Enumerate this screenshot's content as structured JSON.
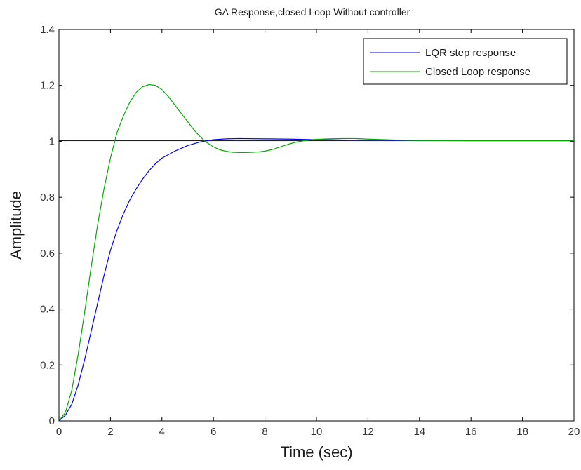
{
  "chart_data": {
    "type": "line",
    "title": "GA Response,closed Loop Without controller",
    "xlabel": "Time (sec)",
    "ylabel": "Amplitude",
    "xlim": [
      0,
      20
    ],
    "ylim": [
      0,
      1.4
    ],
    "xticks": [
      0,
      2,
      4,
      6,
      8,
      10,
      12,
      14,
      16,
      18,
      20
    ],
    "yticks": [
      0,
      0.2,
      0.4,
      0.6,
      0.8,
      1,
      1.2,
      1.4
    ],
    "xtick_labels": [
      "0",
      "2",
      "4",
      "6",
      "8",
      "10",
      "12",
      "14",
      "16",
      "18",
      "20"
    ],
    "ytick_labels": [
      "0",
      "0.2",
      "0.4",
      "0.6",
      "0.8",
      "1",
      "1.2",
      "1.4"
    ],
    "grid": false,
    "legend_position": "top-right",
    "reference_line_y": 1.0,
    "series": [
      {
        "name": "LQR step response",
        "color": "#0000ff",
        "x": [
          0,
          0.25,
          0.5,
          0.75,
          1.0,
          1.25,
          1.5,
          1.75,
          2.0,
          2.25,
          2.5,
          2.75,
          3.0,
          3.25,
          3.5,
          3.75,
          4.0,
          4.5,
          5.0,
          5.5,
          6.0,
          6.5,
          7.0,
          8.0,
          9.0,
          10.0,
          11.0,
          12.0,
          14.0,
          16.0,
          18.0,
          20.0
        ],
        "y": [
          0,
          0.02,
          0.06,
          0.13,
          0.22,
          0.32,
          0.42,
          0.52,
          0.61,
          0.68,
          0.74,
          0.79,
          0.83,
          0.865,
          0.895,
          0.92,
          0.94,
          0.965,
          0.985,
          0.998,
          1.006,
          1.009,
          1.01,
          1.009,
          1.008,
          1.006,
          1.005,
          1.004,
          1.003,
          1.003,
          1.003,
          1.003
        ]
      },
      {
        "name": "Closed Loop response",
        "color": "#00aa00",
        "x": [
          0,
          0.25,
          0.5,
          0.75,
          1.0,
          1.25,
          1.5,
          1.75,
          2.0,
          2.25,
          2.5,
          2.75,
          3.0,
          3.25,
          3.5,
          3.75,
          4.0,
          4.25,
          4.5,
          4.75,
          5.0,
          5.25,
          5.5,
          5.75,
          6.0,
          6.25,
          6.5,
          6.75,
          7.0,
          7.25,
          7.5,
          7.75,
          8.0,
          8.25,
          8.5,
          8.75,
          9.0,
          9.25,
          9.5,
          9.75,
          10.0,
          10.5,
          11.0,
          11.5,
          12.0,
          13.0,
          14.0,
          16.0,
          18.0,
          20.0
        ],
        "y": [
          0,
          0.03,
          0.11,
          0.24,
          0.39,
          0.55,
          0.7,
          0.83,
          0.94,
          1.03,
          1.09,
          1.14,
          1.175,
          1.195,
          1.203,
          1.2,
          1.185,
          1.16,
          1.13,
          1.1,
          1.07,
          1.04,
          1.015,
          0.995,
          0.98,
          0.97,
          0.964,
          0.961,
          0.96,
          0.96,
          0.961,
          0.962,
          0.965,
          0.97,
          0.977,
          0.985,
          0.992,
          0.998,
          1.002,
          1.005,
          1.007,
          1.009,
          1.01,
          1.01,
          1.008,
          1.005,
          1.003,
          1.002,
          1.002,
          1.002
        ]
      }
    ]
  }
}
